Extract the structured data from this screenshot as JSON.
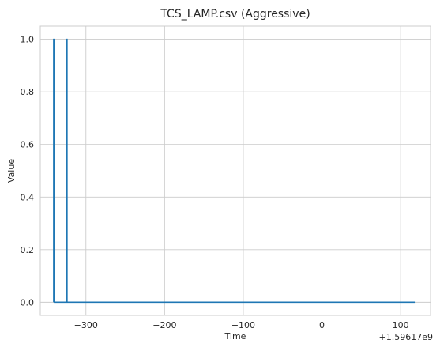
{
  "chart_data": {
    "type": "line",
    "title": "TCS_LAMP.csv (Aggressive)",
    "xlabel": "Time",
    "ylabel": "Value",
    "x_offset_label": "+1.59617e9",
    "xlim": [
      -358,
      138
    ],
    "ylim": [
      -0.05,
      1.05
    ],
    "grid": true,
    "x_ticks": [
      -300,
      -200,
      -100,
      0,
      100
    ],
    "x_tick_labels": [
      "−300",
      "−200",
      "−100",
      "0",
      "100"
    ],
    "y_ticks": [
      0.0,
      0.2,
      0.4,
      0.6,
      0.8,
      1.0
    ],
    "y_tick_labels": [
      "0.0",
      "0.2",
      "0.4",
      "0.6",
      "0.8",
      "1.0"
    ],
    "series": [
      {
        "color": "#1f77b4",
        "x": [
          -341,
          -341,
          -340,
          -340,
          -325,
          -325,
          -324,
          -324,
          118
        ],
        "y": [
          0,
          1,
          1,
          0,
          0,
          1,
          1,
          0,
          0
        ]
      }
    ]
  }
}
